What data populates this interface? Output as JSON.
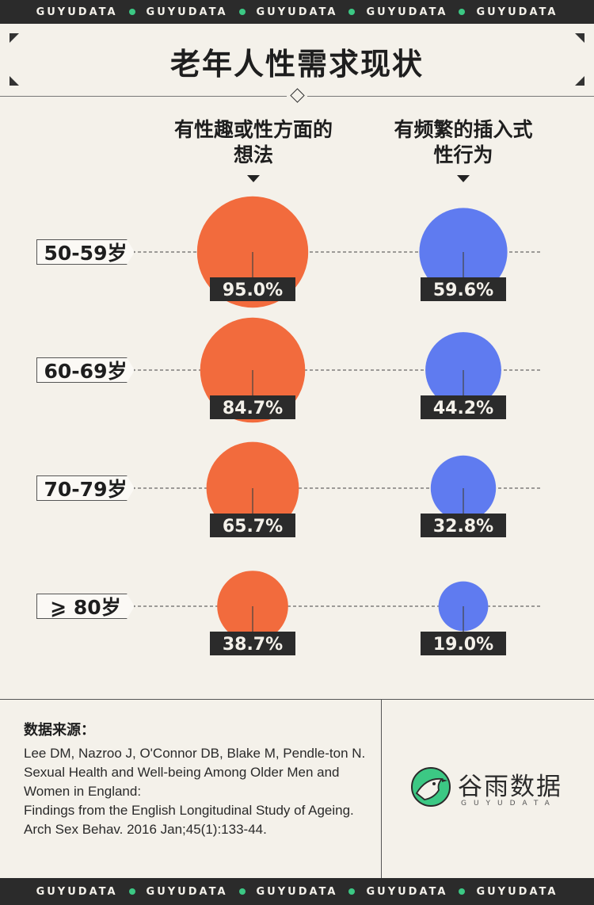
{
  "brand_band": {
    "word": "GUYUDATA",
    "count": 5
  },
  "title": "老年人性需求现状",
  "columns": [
    "有性趣或性方面的想法",
    "有频繁的插入式性行为"
  ],
  "column_lines": [
    [
      "有性趣或性方面的",
      "想法"
    ],
    [
      "有频繁的插入式",
      "性行为"
    ]
  ],
  "chart_data": {
    "type": "bubble",
    "title": "老年人性需求现状",
    "categories": [
      "50-59岁",
      "60-69岁",
      "70-79岁",
      "≥80岁"
    ],
    "series": [
      {
        "name": "有性趣或性方面的想法",
        "color": "#f26b3d",
        "values": [
          95.0,
          84.7,
          65.7,
          38.7
        ]
      },
      {
        "name": "有频繁的插入式性行为",
        "color": "#5f7bf0",
        "values": [
          59.6,
          44.2,
          32.8,
          19.0
        ]
      }
    ],
    "value_format": "%.1f%",
    "size_encoding": "area"
  },
  "row_labels": [
    "50-59岁",
    "60-69岁",
    "70-79岁",
    "⩾ 80岁"
  ],
  "value_labels": [
    [
      "95.0%",
      "59.6%"
    ],
    [
      "84.7%",
      "44.2%"
    ],
    [
      "65.7%",
      "32.8%"
    ],
    [
      "38.7%",
      "19.0%"
    ]
  ],
  "source": {
    "title": "数据来源：",
    "lines": [
      "Lee DM, Nazroo J, O'Connor DB, Blake M, Pendle-ton N.",
      "Sexual Health and Well-being Among Older Men and Women in England:",
      "Findings from the English Longitudinal Study of Ageing. Arch Sex Behav. 2016 Jan;45(1):133-44."
    ]
  },
  "logo": {
    "name": "谷雨数据",
    "sub": "GUYUDATA",
    "color": "#3cc884"
  },
  "colors": {
    "background": "#f4f1ea",
    "band": "#2b2b2b",
    "accent_green": "#3cc884",
    "label_box": "#2b2b2b"
  }
}
